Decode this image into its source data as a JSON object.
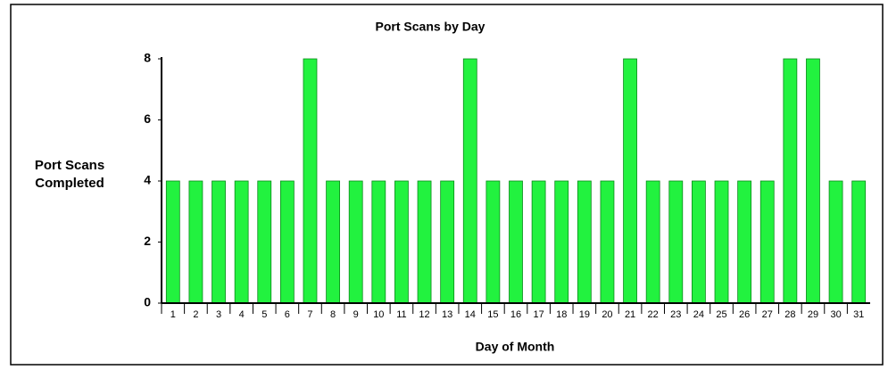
{
  "chart_data": {
    "type": "bar",
    "title": "Port Scans by Day",
    "y_label": "Port Scans Completed",
    "x_label": "Day of Month",
    "categories": [
      "1",
      "2",
      "3",
      "4",
      "5",
      "6",
      "7",
      "8",
      "9",
      "10",
      "11",
      "12",
      "13",
      "14",
      "15",
      "16",
      "17",
      "18",
      "19",
      "20",
      "21",
      "22",
      "23",
      "24",
      "25",
      "26",
      "27",
      "28",
      "29",
      "30",
      "31"
    ],
    "values": [
      4,
      4,
      4,
      4,
      4,
      4,
      8,
      4,
      4,
      4,
      4,
      4,
      4,
      8,
      4,
      4,
      4,
      4,
      4,
      4,
      8,
      4,
      4,
      4,
      4,
      4,
      4,
      8,
      8,
      4,
      4
    ],
    "color": "#22f23f",
    "ylim": [
      0,
      8
    ],
    "yticks": [
      0,
      2,
      4,
      6,
      8
    ],
    "grid": false
  }
}
